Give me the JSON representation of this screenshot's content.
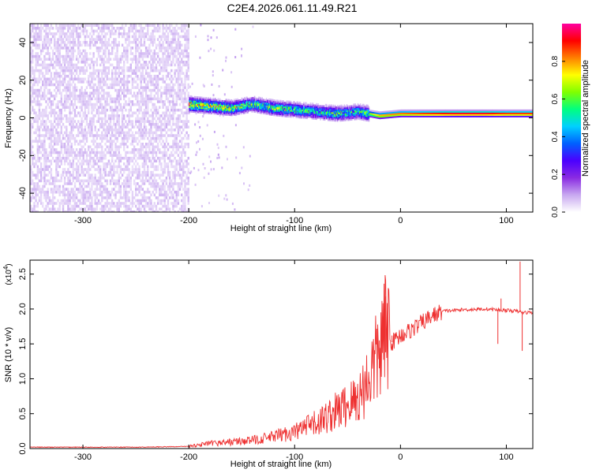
{
  "title": "C2E4.2026.061.11.49.R21",
  "chart_data": [
    {
      "type": "heatmap",
      "xlabel": "Height of straight line (km)",
      "ylabel": "Frequency (Hz)",
      "xlim": [
        -350,
        125
      ],
      "ylim": [
        -50,
        50
      ],
      "x_ticks": [
        -300,
        -200,
        -100,
        0,
        100
      ],
      "y_ticks": [
        -40,
        -20,
        0,
        20,
        40
      ],
      "colorbar": {
        "label": "Normalized spectral amplitude",
        "range": [
          0,
          1
        ],
        "ticks": [
          "0.0",
          "0.2",
          "0.4",
          "0.6",
          "0.8"
        ],
        "colors": [
          "#ffffff",
          "#c8a8f0",
          "#8a2be2",
          "#4b00ff",
          "#0060ff",
          "#00d0ff",
          "#00ff80",
          "#80ff00",
          "#ffff00",
          "#ff8000",
          "#ff0000",
          "#ff00a0"
        ]
      },
      "noise_region_x": [
        -350,
        -200
      ],
      "ridge": [
        {
          "x": -200,
          "freq": 7,
          "amp": 0.75
        },
        {
          "x": -180,
          "freq": 6,
          "amp": 0.7
        },
        {
          "x": -160,
          "freq": 5,
          "amp": 0.65
        },
        {
          "x": -140,
          "freq": 7,
          "amp": 0.55
        },
        {
          "x": -120,
          "freq": 5,
          "amp": 0.6
        },
        {
          "x": -100,
          "freq": 4,
          "amp": 0.55
        },
        {
          "x": -80,
          "freq": 3,
          "amp": 0.5
        },
        {
          "x": -60,
          "freq": 2,
          "amp": 0.55
        },
        {
          "x": -40,
          "freq": 3,
          "amp": 0.5
        },
        {
          "x": -20,
          "freq": 1,
          "amp": 0.8
        },
        {
          "x": 0,
          "freq": 2,
          "amp": 0.85
        },
        {
          "x": 20,
          "freq": 2,
          "amp": 0.9
        },
        {
          "x": 50,
          "freq": 2,
          "amp": 0.95
        },
        {
          "x": 80,
          "freq": 2,
          "amp": 0.95
        },
        {
          "x": 100,
          "freq": 2,
          "amp": 0.9
        },
        {
          "x": 125,
          "freq": 2,
          "amp": 0.9
        }
      ]
    },
    {
      "type": "line",
      "xlabel": "Height of straight line (km)",
      "ylabel": "SNR (10 * v/v)",
      "y_scale_label": "(x10",
      "y_scale_exponent": "4",
      "xlim": [
        -350,
        125
      ],
      "ylim": [
        0,
        2.7
      ],
      "x_ticks": [
        -300,
        -200,
        -100,
        0,
        100
      ],
      "y_ticks": [
        "0.0",
        "0.5",
        "1.0",
        "1.5",
        "2.0",
        "2.5"
      ],
      "series": [
        {
          "name": "SNR",
          "color": "#ee3030",
          "x": [
            -350,
            -300,
            -250,
            -200,
            -180,
            -160,
            -140,
            -120,
            -100,
            -80,
            -60,
            -40,
            -30,
            -20,
            -15,
            -10,
            0,
            10,
            20,
            30,
            40,
            60,
            80,
            100,
            110,
            115,
            125
          ],
          "y": [
            0.02,
            0.02,
            0.02,
            0.03,
            0.06,
            0.08,
            0.1,
            0.14,
            0.2,
            0.3,
            0.45,
            0.6,
            0.85,
            1.15,
            1.35,
            1.5,
            1.62,
            1.7,
            1.8,
            1.9,
            1.97,
            1.99,
            2.0,
            1.98,
            1.97,
            1.95,
            1.95
          ]
        }
      ],
      "spikes": [
        {
          "x": -20,
          "y": 1.55
        },
        {
          "x": -14,
          "y": 2.18
        },
        {
          "x": -8,
          "y": 1.62
        },
        {
          "x": 92,
          "y": 1.5
        },
        {
          "x": 95,
          "y": 2.15
        },
        {
          "x": 113,
          "y": 2.68
        },
        {
          "x": 115,
          "y": 1.4
        }
      ]
    }
  ]
}
